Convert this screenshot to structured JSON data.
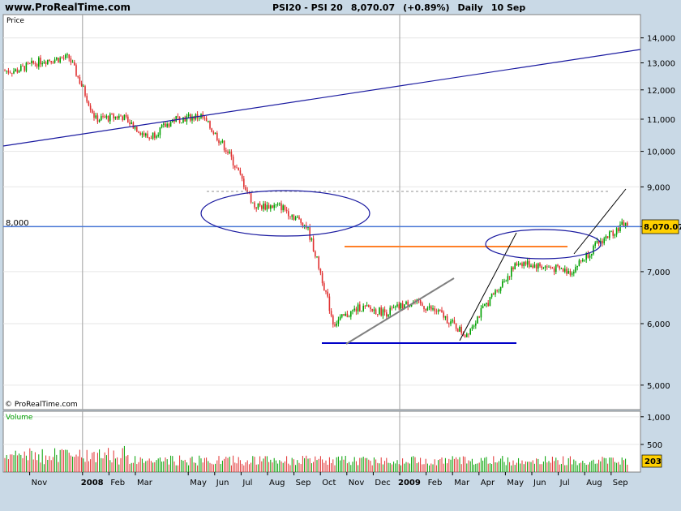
{
  "header": {
    "site": "www.ProRealTime.com",
    "instrument": "PSI20 - PSI 20",
    "last": "8,070.07",
    "change": "(+0.89%)",
    "period": "Daily",
    "date": "10 Sep"
  },
  "chart_data": {
    "type": "candlestick",
    "price_panel_label": "Price",
    "volume_panel_label": "Volume",
    "copyright": "© ProRealTime.com",
    "x_tick_labels": [
      "Nov",
      "2008",
      "Feb",
      "Mar",
      "May",
      "Jun",
      "Jul",
      "Aug",
      "Sep",
      "Oct",
      "Nov",
      "Dec",
      "2009",
      "Feb",
      "Mar",
      "Apr",
      "May",
      "Jun",
      "Jul",
      "Aug",
      "Sep"
    ],
    "price_axis": {
      "scale": "log",
      "ticks": [
        5000,
        6000,
        7000,
        8000,
        9000,
        10000,
        11000,
        12000,
        13000,
        14000
      ],
      "tick_labels": [
        "5,000",
        "6,000",
        "7,000",
        "8,000",
        "9,000",
        "10,000",
        "11,000",
        "12,000",
        "13,000",
        "14,000"
      ],
      "range": [
        4650,
        15000
      ]
    },
    "volume_axis": {
      "ticks": [
        500,
        1000
      ],
      "tick_labels": [
        "500",
        "1,000"
      ],
      "range": [
        0,
        1100
      ]
    },
    "last_price_label": "8,070.07",
    "last_volume_label": "203",
    "horizontal_level_label": "8,000",
    "horizontal_level": 8000,
    "price_path": [
      {
        "month": "2007-10",
        "close": 12700
      },
      {
        "month": "2007-11",
        "close": 13100
      },
      {
        "month": "2007-12",
        "close": 13200
      },
      {
        "month": "2008-01",
        "close": 11000
      },
      {
        "month": "2008-02",
        "close": 11100
      },
      {
        "month": "2008-03",
        "close": 10400
      },
      {
        "month": "2008-04",
        "close": 11000
      },
      {
        "month": "2008-05",
        "close": 11100
      },
      {
        "month": "2008-06",
        "close": 10000
      },
      {
        "month": "2008-07",
        "close": 8500
      },
      {
        "month": "2008-08",
        "close": 8500
      },
      {
        "month": "2008-09",
        "close": 8000
      },
      {
        "month": "2008-10",
        "close": 6000
      },
      {
        "month": "2008-11",
        "close": 6300
      },
      {
        "month": "2008-12",
        "close": 6200
      },
      {
        "month": "2009-01",
        "close": 6400
      },
      {
        "month": "2009-02",
        "close": 6200
      },
      {
        "month": "2009-03",
        "close": 5800
      },
      {
        "month": "2009-04",
        "close": 6500
      },
      {
        "month": "2009-05",
        "close": 7200
      },
      {
        "month": "2009-06",
        "close": 7100
      },
      {
        "month": "2009-07",
        "close": 7000
      },
      {
        "month": "2009-08",
        "close": 7600
      },
      {
        "month": "2009-09",
        "close": 8070
      }
    ],
    "colors": {
      "up": "#00a000",
      "down": "#e03030",
      "trendline": "#1a1aa0",
      "support": "#0000c8",
      "resistance": "#ff7f27",
      "level": "#4a78d6"
    }
  }
}
